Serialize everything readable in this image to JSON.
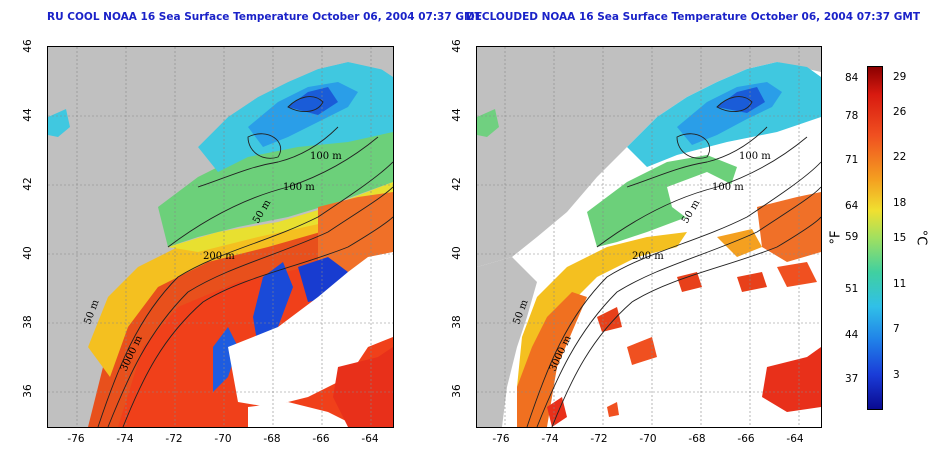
{
  "titles": {
    "left": "RU COOL NOAA 16 Sea Surface Temperature October 06, 2004 07:37 GMT",
    "right": "DECLOUDED NOAA 16 Sea Surface Temperature October 06, 2004 07:37 GMT"
  },
  "axes": {
    "lat_ticks": [
      "46",
      "44",
      "42",
      "40",
      "38",
      "36"
    ],
    "lon_ticks": [
      "-76",
      "-74",
      "-72",
      "-70",
      "-68",
      "-66",
      "-64"
    ]
  },
  "contour_labels": {
    "c100a": "100 m",
    "c100b": "100 m",
    "c50": "50 m",
    "c200": "200 m",
    "c50b": "50 m",
    "c3000": "3000 m"
  },
  "colorbar": {
    "fahrenheit_ticks": [
      "84",
      "78",
      "71",
      "64",
      "59",
      "51",
      "44",
      "37"
    ],
    "celsius_ticks": [
      "29",
      "26",
      "22",
      "18",
      "15",
      "11",
      "7",
      "3"
    ],
    "fahrenheit_unit": "°F",
    "celsius_unit": "°C"
  },
  "colors": {
    "land": "#c0c0c0",
    "cloud": "#ffffff",
    "title": "#1a22c8"
  }
}
